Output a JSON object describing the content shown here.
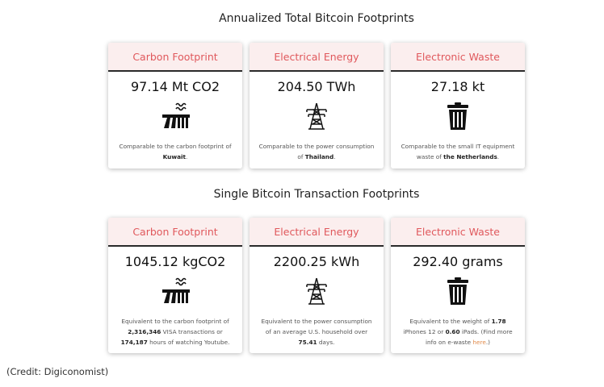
{
  "annual": {
    "title": "Annualized Total Bitcoin Footprints",
    "cards": [
      {
        "header": "Carbon Footprint",
        "value": "97.14 Mt CO2",
        "icon": "factory-icon",
        "desc_pre": "Comparable to the carbon footprint of ",
        "desc_bold": "Kuwait",
        "desc_post": "."
      },
      {
        "header": "Electrical Energy",
        "value": "204.50 TWh",
        "icon": "power-tower-icon",
        "desc_pre": "Comparable to the power consumption of ",
        "desc_bold": "Thailand",
        "desc_post": "."
      },
      {
        "header": "Electronic Waste",
        "value": "27.18 kt",
        "icon": "trash-bin-icon",
        "desc_pre": "Comparable to the small IT equipment waste of ",
        "desc_bold": "the Netherlands",
        "desc_post": "."
      }
    ]
  },
  "single": {
    "title": "Single Bitcoin Transaction Footprints",
    "cards": [
      {
        "header": "Carbon Footprint",
        "value": "1045.12 kgCO2",
        "icon": "factory-icon",
        "desc_a": "Equivalent to the carbon footprint of ",
        "desc_b": "2,316,346",
        "desc_c": " VISA transactions or ",
        "desc_d": "174,187",
        "desc_e": " hours of watching Youtube."
      },
      {
        "header": "Electrical Energy",
        "value": "2200.25 kWh",
        "icon": "power-tower-icon",
        "desc_a": "Equivalent to the power consumption of an average U.S. household over ",
        "desc_b": "75.41",
        "desc_c": " days."
      },
      {
        "header": "Electronic Waste",
        "value": "292.40 grams",
        "icon": "trash-bin-icon",
        "desc_a": "Equivalent to the weight of ",
        "desc_b": "1.78",
        "desc_c": " iPhones 12 or ",
        "desc_d": "0.60",
        "desc_e": " iPads. (Find more info on e-waste ",
        "desc_link": "here",
        "desc_f": ".)"
      }
    ]
  },
  "credit": "(Credit: Digiconomist)",
  "colors": {
    "header_text": "#e0585c",
    "header_bg": "#fbeeee",
    "link": "#e08a4a"
  }
}
